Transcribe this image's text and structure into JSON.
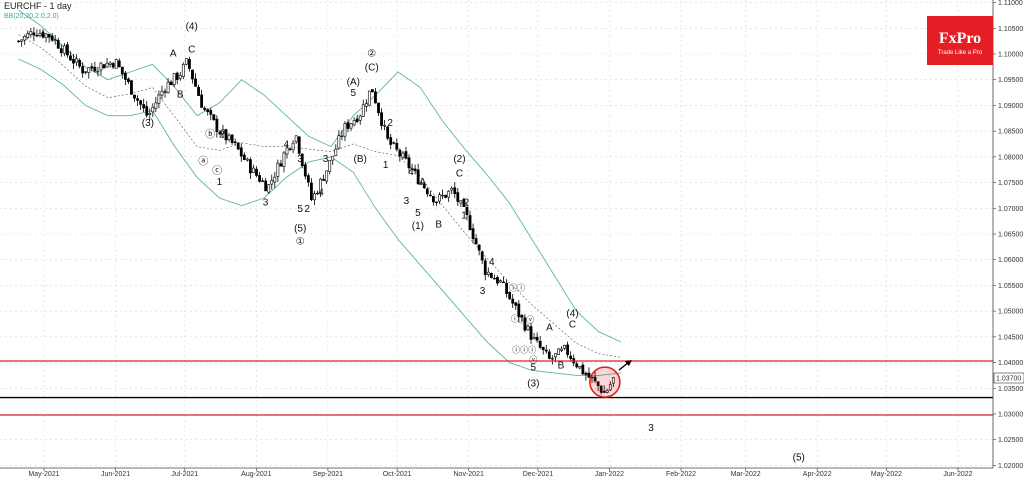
{
  "chart_data": {
    "type": "candlestick",
    "title": "EURCHF - 1 day",
    "indicator_label": "BB(20,20,2.0,2.0)",
    "symbol": "EURCHF",
    "timeframe": "1 day",
    "x_tick_labels": [
      "May-2021",
      "Jun-2021",
      "Jul-2021",
      "Aug-2021",
      "Sep-2021",
      "Oct-2021",
      "Nov-2021",
      "Dec-2021",
      "Jan-2022",
      "Feb-2022",
      "Mar-2022",
      "Apr-2022",
      "May-2022",
      "Jun-2022"
    ],
    "y_tick_labels": [
      "1.11000",
      "1.10500",
      "1.10000",
      "1.09500",
      "1.09000",
      "1.08500",
      "1.08000",
      "1.07500",
      "1.07000",
      "1.06500",
      "1.06000",
      "1.05500",
      "1.05000",
      "1.04500",
      "1.04000",
      "1.03500",
      "1.03000",
      "1.02500",
      "1.02000"
    ],
    "ylim": [
      1.0195,
      1.1105
    ],
    "current_price": "1.03700",
    "series": [
      {
        "kind": "ohlc",
        "close_path": [
          [
            "2021-04-20",
            1.1025
          ],
          [
            "2021-04-27",
            1.1045
          ],
          [
            "2021-05-04",
            1.1035
          ],
          [
            "2021-05-11",
            1.1
          ],
          [
            "2021-05-18",
            1.0968
          ],
          [
            "2021-05-25",
            1.0978
          ],
          [
            "2021-06-01",
            1.0985
          ],
          [
            "2021-06-08",
            1.093
          ],
          [
            "2021-06-15",
            1.0878
          ],
          [
            "2021-06-22",
            1.0935
          ],
          [
            "2021-06-29",
            1.0962
          ],
          [
            "2021-07-02",
            1.0985
          ],
          [
            "2021-07-09",
            1.0895
          ],
          [
            "2021-07-16",
            1.085
          ],
          [
            "2021-07-23",
            1.082
          ],
          [
            "2021-07-30",
            1.0775
          ],
          [
            "2021-08-06",
            1.074
          ],
          [
            "2021-08-13",
            1.0805
          ],
          [
            "2021-08-18",
            1.0845
          ],
          [
            "2021-08-25",
            1.0715
          ],
          [
            "2021-09-01",
            1.078
          ],
          [
            "2021-09-08",
            1.0855
          ],
          [
            "2021-09-15",
            1.0885
          ],
          [
            "2021-09-20",
            1.0935
          ],
          [
            "2021-09-27",
            1.083
          ],
          [
            "2021-10-04",
            1.0795
          ],
          [
            "2021-10-11",
            1.0752
          ],
          [
            "2021-10-18",
            1.0715
          ],
          [
            "2021-10-25",
            1.0735
          ],
          [
            "2021-11-01",
            1.0675
          ],
          [
            "2021-11-08",
            1.058
          ],
          [
            "2021-11-15",
            1.0555
          ],
          [
            "2021-11-22",
            1.05
          ],
          [
            "2021-11-29",
            1.0445
          ],
          [
            "2021-12-06",
            1.0405
          ],
          [
            "2021-12-13",
            1.0425
          ],
          [
            "2021-12-20",
            1.0385
          ],
          [
            "2021-12-27",
            1.0355
          ],
          [
            "2021-12-30",
            1.034
          ],
          [
            "2022-01-03",
            1.037
          ]
        ]
      },
      {
        "kind": "bollinger_band",
        "name": "upper",
        "values": [
          [
            1.1085,
            1.1055,
            1.1015,
            1.0975,
            1.095,
            1.0965,
            1.098,
            1.0935,
            1.088,
            1.0905,
            1.095,
            1.092,
            1.088,
            1.084,
            1.082,
            1.088,
            1.092,
            1.0965,
            1.0935,
            1.087,
            1.0815,
            1.0765,
            1.071,
            1.064,
            1.057,
            1.05,
            1.046,
            1.044
          ]
        ]
      },
      {
        "kind": "bollinger_band",
        "name": "lower",
        "values": [
          [
            1.099,
            1.097,
            1.094,
            1.09,
            1.088,
            1.088,
            1.089,
            1.082,
            1.076,
            1.072,
            1.0705,
            1.072,
            1.076,
            1.079,
            1.08,
            1.077,
            1.07,
            1.064,
            1.059,
            1.054,
            1.049,
            1.044,
            1.04,
            1.0385,
            1.038,
            1.0375,
            1.0375,
            1.038
          ]
        ]
      }
    ],
    "horizontal_lines": [
      {
        "price": 1.0403,
        "color": "#e02020"
      },
      {
        "price": 1.0332,
        "color": "#000000"
      },
      {
        "price": 1.0298,
        "color": "#e02020"
      }
    ],
    "annotations": [
      {
        "text": "(3)",
        "date": "2021-06-15",
        "price": 1.086,
        "size": "md"
      },
      {
        "text": "A",
        "date": "2021-06-26",
        "price": 1.0995,
        "size": "md"
      },
      {
        "text": "B",
        "date": "2021-06-29",
        "price": 1.0915,
        "size": "md"
      },
      {
        "text": "(4)",
        "date": "2021-07-04",
        "price": 1.1048,
        "size": "md"
      },
      {
        "text": "C",
        "date": "2021-07-04",
        "price": 1.1003,
        "size": "md"
      },
      {
        "text": "ⓑ",
        "date": "2021-07-12",
        "price": 1.0838,
        "size": "md"
      },
      {
        "text": "2",
        "date": "2021-07-17",
        "price": 1.0838,
        "size": "md"
      },
      {
        "text": "ⓐ",
        "date": "2021-07-09",
        "price": 1.0785,
        "size": "md"
      },
      {
        "text": "ⓒ",
        "date": "2021-07-15",
        "price": 1.0767,
        "size": "md"
      },
      {
        "text": "1",
        "date": "2021-07-16",
        "price": 1.0745,
        "size": "md"
      },
      {
        "text": "3",
        "date": "2021-08-05",
        "price": 1.0705,
        "size": "md"
      },
      {
        "text": "4",
        "date": "2021-08-14",
        "price": 1.0818,
        "size": "md"
      },
      {
        "text": "3",
        "date": "2021-08-20",
        "price": 1.079,
        "size": "md"
      },
      {
        "text": "5",
        "date": "2021-08-20",
        "price": 1.0693,
        "size": "md"
      },
      {
        "text": "2",
        "date": "2021-08-23",
        "price": 1.0693,
        "size": "md"
      },
      {
        "text": "4",
        "date": "2021-08-29",
        "price": 1.0725,
        "size": "md"
      },
      {
        "text": "3",
        "date": "2021-08-31",
        "price": 1.079,
        "size": "md"
      },
      {
        "text": "(5)",
        "date": "2021-08-20",
        "price": 1.0655,
        "size": "md"
      },
      {
        "text": "①",
        "date": "2021-08-20",
        "price": 1.063,
        "size": "md"
      },
      {
        "text": "5",
        "date": "2021-09-12",
        "price": 1.0918,
        "size": "md"
      },
      {
        "text": "(A)",
        "date": "2021-09-12",
        "price": 1.094,
        "size": "md"
      },
      {
        "text": "(B)",
        "date": "2021-09-15",
        "price": 1.079,
        "size": "md"
      },
      {
        "text": "1",
        "date": "2021-09-26",
        "price": 1.0778,
        "size": "md"
      },
      {
        "text": "②",
        "date": "2021-09-20",
        "price": 1.0995,
        "size": "md"
      },
      {
        "text": "(C)",
        "date": "2021-09-20",
        "price": 1.0968,
        "size": "md"
      },
      {
        "text": "2",
        "date": "2021-09-28",
        "price": 1.086,
        "size": "md"
      },
      {
        "text": "4",
        "date": "2021-10-07",
        "price": 1.0765,
        "size": "md"
      },
      {
        "text": "A",
        "date": "2021-10-12",
        "price": 1.0745,
        "size": "md"
      },
      {
        "text": "3",
        "date": "2021-10-05",
        "price": 1.0708,
        "size": "md"
      },
      {
        "text": "5",
        "date": "2021-10-10",
        "price": 1.0685,
        "size": "md"
      },
      {
        "text": "B",
        "date": "2021-10-19",
        "price": 1.0663,
        "size": "md"
      },
      {
        "text": "(1)",
        "date": "2021-10-10",
        "price": 1.066,
        "size": "md"
      },
      {
        "text": "(2)",
        "date": "2021-10-28",
        "price": 1.079,
        "size": "md"
      },
      {
        "text": "C",
        "date": "2021-10-28",
        "price": 1.0762,
        "size": "md"
      },
      {
        "text": "2",
        "date": "2021-10-31",
        "price": 1.0705,
        "size": "md"
      },
      {
        "text": "1",
        "date": "2021-10-30",
        "price": 1.068,
        "size": "md"
      },
      {
        "text": "4",
        "date": "2021-11-11",
        "price": 1.059,
        "size": "md"
      },
      {
        "text": "3",
        "date": "2021-11-07",
        "price": 1.0533,
        "size": "md"
      },
      {
        "text": "ⓘⓘ",
        "date": "2021-11-22",
        "price": 1.054,
        "size": "sm"
      },
      {
        "text": "ⓘ",
        "date": "2021-11-21",
        "price": 1.048,
        "size": "sm"
      },
      {
        "text": "ⓘⓥ",
        "date": "2021-11-26",
        "price": 1.0478,
        "size": "sm"
      },
      {
        "text": "ⓘⓘⓘ",
        "date": "2021-11-25",
        "price": 1.042,
        "size": "sm"
      },
      {
        "text": "ⓥ",
        "date": "2021-11-29",
        "price": 1.04,
        "size": "sm"
      },
      {
        "text": "5",
        "date": "2021-11-29",
        "price": 1.0385,
        "size": "md"
      },
      {
        "text": "(3)",
        "date": "2021-11-29",
        "price": 1.0353,
        "size": "md"
      },
      {
        "text": "A",
        "date": "2021-12-06",
        "price": 1.0462,
        "size": "md"
      },
      {
        "text": "(4)",
        "date": "2021-12-16",
        "price": 1.049,
        "size": "md"
      },
      {
        "text": "C",
        "date": "2021-12-16",
        "price": 1.0468,
        "size": "md"
      },
      {
        "text": "B",
        "date": "2021-12-11",
        "price": 1.0388,
        "size": "md"
      },
      {
        "text": "3",
        "date": "2022-01-19",
        "price": 1.0267,
        "size": "md"
      },
      {
        "text": "(5)",
        "date": "2022-03-24",
        "price": 1.021,
        "size": "md"
      }
    ],
    "grid": true,
    "legend": "top-left"
  },
  "logo": {
    "name": "FxPro",
    "tagline": "Trade Like a Pro",
    "bg": "#e31e24",
    "fg": "#ffffff"
  },
  "colors": {
    "band": "#5fb3a8",
    "midline": "#555555",
    "candle": "#000000",
    "grid": "#d9d9d9"
  },
  "icons": {
    "target_marker": "red-circle-icon",
    "direction_arrow": "arrow-up-right-icon"
  }
}
